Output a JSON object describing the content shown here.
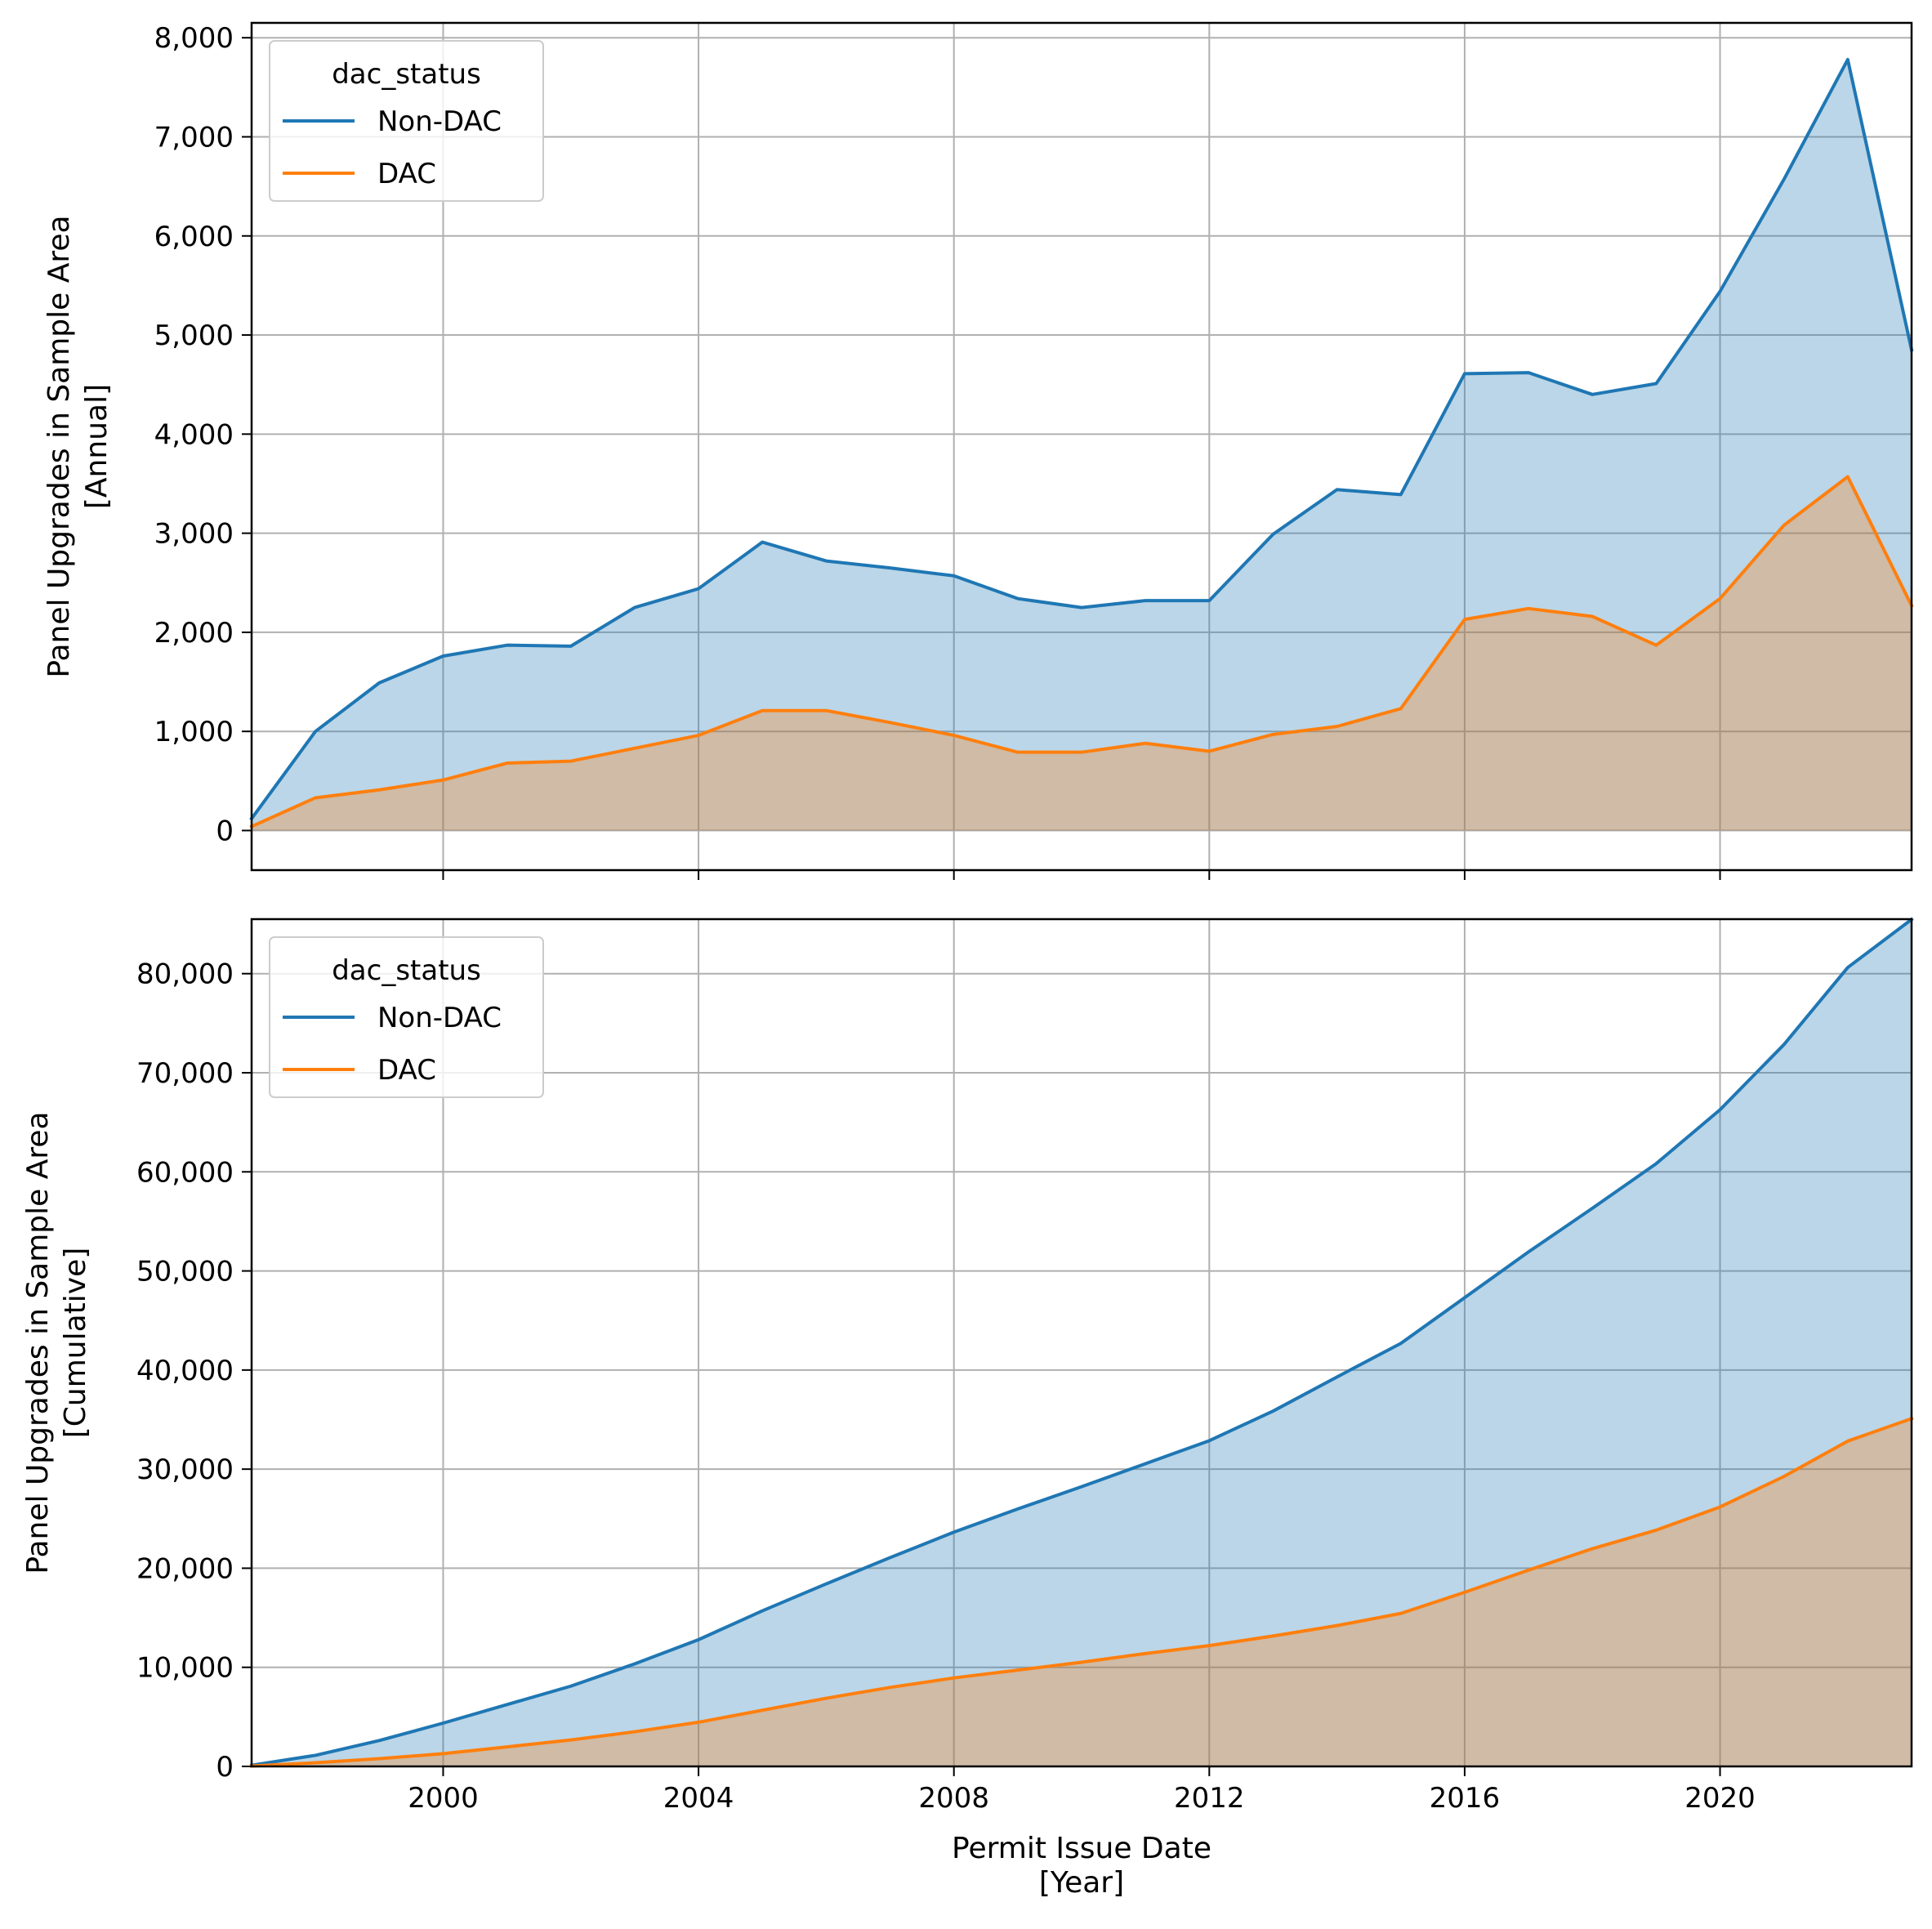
{
  "colors": {
    "non_dac": "#1f77b4",
    "dac": "#ff7f0e",
    "grid": "#b0b0b0",
    "non_dac_fill": "#1f77b4",
    "dac_fill": "#ff7f0e"
  },
  "chart_data": [
    {
      "type": "area",
      "title": "",
      "xlabel": "",
      "ylabel_line1": "Panel Upgrades in Sample Area",
      "ylabel_line2": "[Annual]",
      "xlim": [
        1997,
        2023
      ],
      "ylim": [
        -400,
        8150
      ],
      "x_ticks": [
        2000,
        2004,
        2008,
        2012,
        2016,
        2020
      ],
      "y_ticks": [
        0,
        1000,
        2000,
        3000,
        4000,
        5000,
        6000,
        7000,
        8000
      ],
      "y_tick_labels": [
        "0",
        "1,000",
        "2,000",
        "3,000",
        "4,000",
        "5,000",
        "6,000",
        "7,000",
        "8,000"
      ],
      "grid": true,
      "legend": {
        "title": "dac_status",
        "position": "top-left",
        "entries": [
          "Non-DAC",
          "DAC"
        ]
      },
      "x": [
        1997,
        1998,
        1999,
        2000,
        2001,
        2002,
        2003,
        2004,
        2005,
        2006,
        2007,
        2008,
        2009,
        2010,
        2011,
        2012,
        2013,
        2014,
        2015,
        2016,
        2017,
        2018,
        2019,
        2020,
        2021,
        2022,
        2023
      ],
      "series": [
        {
          "name": "Non-DAC",
          "values": [
            120,
            1000,
            1490,
            1760,
            1870,
            1860,
            2250,
            2440,
            2910,
            2720,
            2650,
            2570,
            2340,
            2250,
            2320,
            2320,
            2990,
            3440,
            3390,
            4610,
            4620,
            4400,
            4510,
            5440,
            6570,
            7780,
            4850
          ]
        },
        {
          "name": "DAC",
          "values": [
            40,
            330,
            410,
            510,
            680,
            700,
            830,
            960,
            1210,
            1210,
            1090,
            960,
            790,
            790,
            880,
            800,
            970,
            1050,
            1230,
            2130,
            2240,
            2160,
            1870,
            2340,
            3080,
            3570,
            2270
          ]
        }
      ]
    },
    {
      "type": "area",
      "title": "",
      "xlabel_line1": "Permit Issue Date",
      "xlabel_line2": "[Year]",
      "ylabel_line1": "Panel Upgrades in Sample Area",
      "ylabel_line2": "[Cumulative]",
      "xlim": [
        1997,
        2023
      ],
      "ylim": [
        0,
        85500
      ],
      "x_ticks": [
        2000,
        2004,
        2008,
        2012,
        2016,
        2020
      ],
      "x_tick_labels": [
        "2000",
        "2004",
        "2008",
        "2012",
        "2016",
        "2020"
      ],
      "y_ticks": [
        0,
        10000,
        20000,
        30000,
        40000,
        50000,
        60000,
        70000,
        80000
      ],
      "y_tick_labels": [
        "0",
        "10,000",
        "20,000",
        "30,000",
        "40,000",
        "50,000",
        "60,000",
        "70,000",
        "80,000"
      ],
      "grid": true,
      "legend": {
        "title": "dac_status",
        "position": "top-left",
        "entries": [
          "Non-DAC",
          "DAC"
        ]
      },
      "x": [
        1997,
        1998,
        1999,
        2000,
        2001,
        2002,
        2003,
        2004,
        2005,
        2006,
        2007,
        2008,
        2009,
        2010,
        2011,
        2012,
        2013,
        2014,
        2015,
        2016,
        2017,
        2018,
        2019,
        2020,
        2021,
        2022,
        2023
      ],
      "series": [
        {
          "name": "Non-DAC",
          "values": [
            120,
            1120,
            2610,
            4370,
            6240,
            8100,
            10350,
            12790,
            15700,
            18420,
            21070,
            23640,
            25980,
            28230,
            30550,
            32870,
            35860,
            39300,
            42690,
            47300,
            51920,
            56320,
            60830,
            66270,
            72840,
            80620,
            85470
          ]
        },
        {
          "name": "DAC",
          "values": [
            40,
            370,
            780,
            1290,
            1970,
            2670,
            3500,
            4460,
            5670,
            6880,
            7970,
            8930,
            9720,
            10510,
            11390,
            12190,
            13160,
            14210,
            15440,
            17570,
            19810,
            21970,
            23840,
            26180,
            29260,
            32830,
            35100
          ]
        }
      ]
    }
  ]
}
